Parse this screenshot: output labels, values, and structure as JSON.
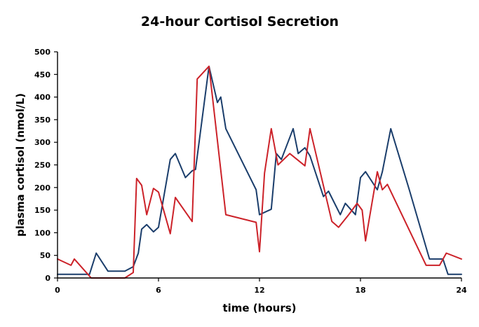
{
  "chart_data": {
    "type": "line",
    "title": "24-hour Cortisol Secretion",
    "xlabel": "time (hours)",
    "ylabel": "plasma cortisol (nmol/L)",
    "xlim": [
      0,
      24
    ],
    "ylim": [
      0,
      500
    ],
    "xticks": [
      0,
      6,
      12,
      18,
      24
    ],
    "yticks": [
      0,
      50,
      100,
      150,
      200,
      250,
      300,
      350,
      400,
      450,
      500
    ],
    "grid": false,
    "legend": "none",
    "series": [
      {
        "color": "#1a3d6b",
        "points": [
          [
            0,
            8
          ],
          [
            1.9,
            8
          ],
          [
            2.3,
            55
          ],
          [
            3,
            15
          ],
          [
            4,
            15
          ],
          [
            4.5,
            25
          ],
          [
            4.8,
            55
          ],
          [
            5,
            108
          ],
          [
            5.3,
            118
          ],
          [
            5.7,
            102
          ],
          [
            6,
            112
          ],
          [
            6.7,
            262
          ],
          [
            7,
            275
          ],
          [
            7.6,
            222
          ],
          [
            8,
            237
          ],
          [
            8.2,
            240
          ],
          [
            9,
            468
          ],
          [
            9.5,
            388
          ],
          [
            9.7,
            400
          ],
          [
            10,
            330
          ],
          [
            11.8,
            195
          ],
          [
            12,
            140
          ],
          [
            12.7,
            152
          ],
          [
            13,
            275
          ],
          [
            13.3,
            262
          ],
          [
            14,
            330
          ],
          [
            14.3,
            275
          ],
          [
            14.7,
            288
          ],
          [
            15,
            270
          ],
          [
            15.8,
            180
          ],
          [
            16.1,
            192
          ],
          [
            16.8,
            140
          ],
          [
            17.1,
            165
          ],
          [
            17.7,
            140
          ],
          [
            18,
            222
          ],
          [
            18.3,
            235
          ],
          [
            19,
            195
          ],
          [
            19.3,
            235
          ],
          [
            19.8,
            330
          ],
          [
            20.9,
            195
          ],
          [
            22.1,
            42
          ],
          [
            22.9,
            42
          ],
          [
            23.2,
            8
          ],
          [
            24,
            8
          ]
        ]
      },
      {
        "color": "#cc2229",
        "points": [
          [
            0,
            42
          ],
          [
            0.8,
            28
          ],
          [
            1,
            42
          ],
          [
            2,
            0
          ],
          [
            4,
            0
          ],
          [
            4.5,
            12
          ],
          [
            4.7,
            220
          ],
          [
            5,
            205
          ],
          [
            5.3,
            140
          ],
          [
            5.7,
            198
          ],
          [
            6,
            190
          ],
          [
            6.7,
            98
          ],
          [
            7,
            178
          ],
          [
            8,
            125
          ],
          [
            8.3,
            440
          ],
          [
            9,
            468
          ],
          [
            10,
            140
          ],
          [
            11.8,
            123
          ],
          [
            12,
            58
          ],
          [
            12.3,
            232
          ],
          [
            12.7,
            330
          ],
          [
            13.1,
            250
          ],
          [
            13.8,
            275
          ],
          [
            14.7,
            248
          ],
          [
            15,
            330
          ],
          [
            16.3,
            125
          ],
          [
            16.7,
            112
          ],
          [
            17.3,
            140
          ],
          [
            17.8,
            165
          ],
          [
            18.1,
            150
          ],
          [
            18.3,
            82
          ],
          [
            19,
            235
          ],
          [
            19.3,
            195
          ],
          [
            19.6,
            207
          ],
          [
            21.9,
            28
          ],
          [
            22.7,
            28
          ],
          [
            23.1,
            55
          ],
          [
            24,
            42
          ]
        ]
      }
    ]
  }
}
